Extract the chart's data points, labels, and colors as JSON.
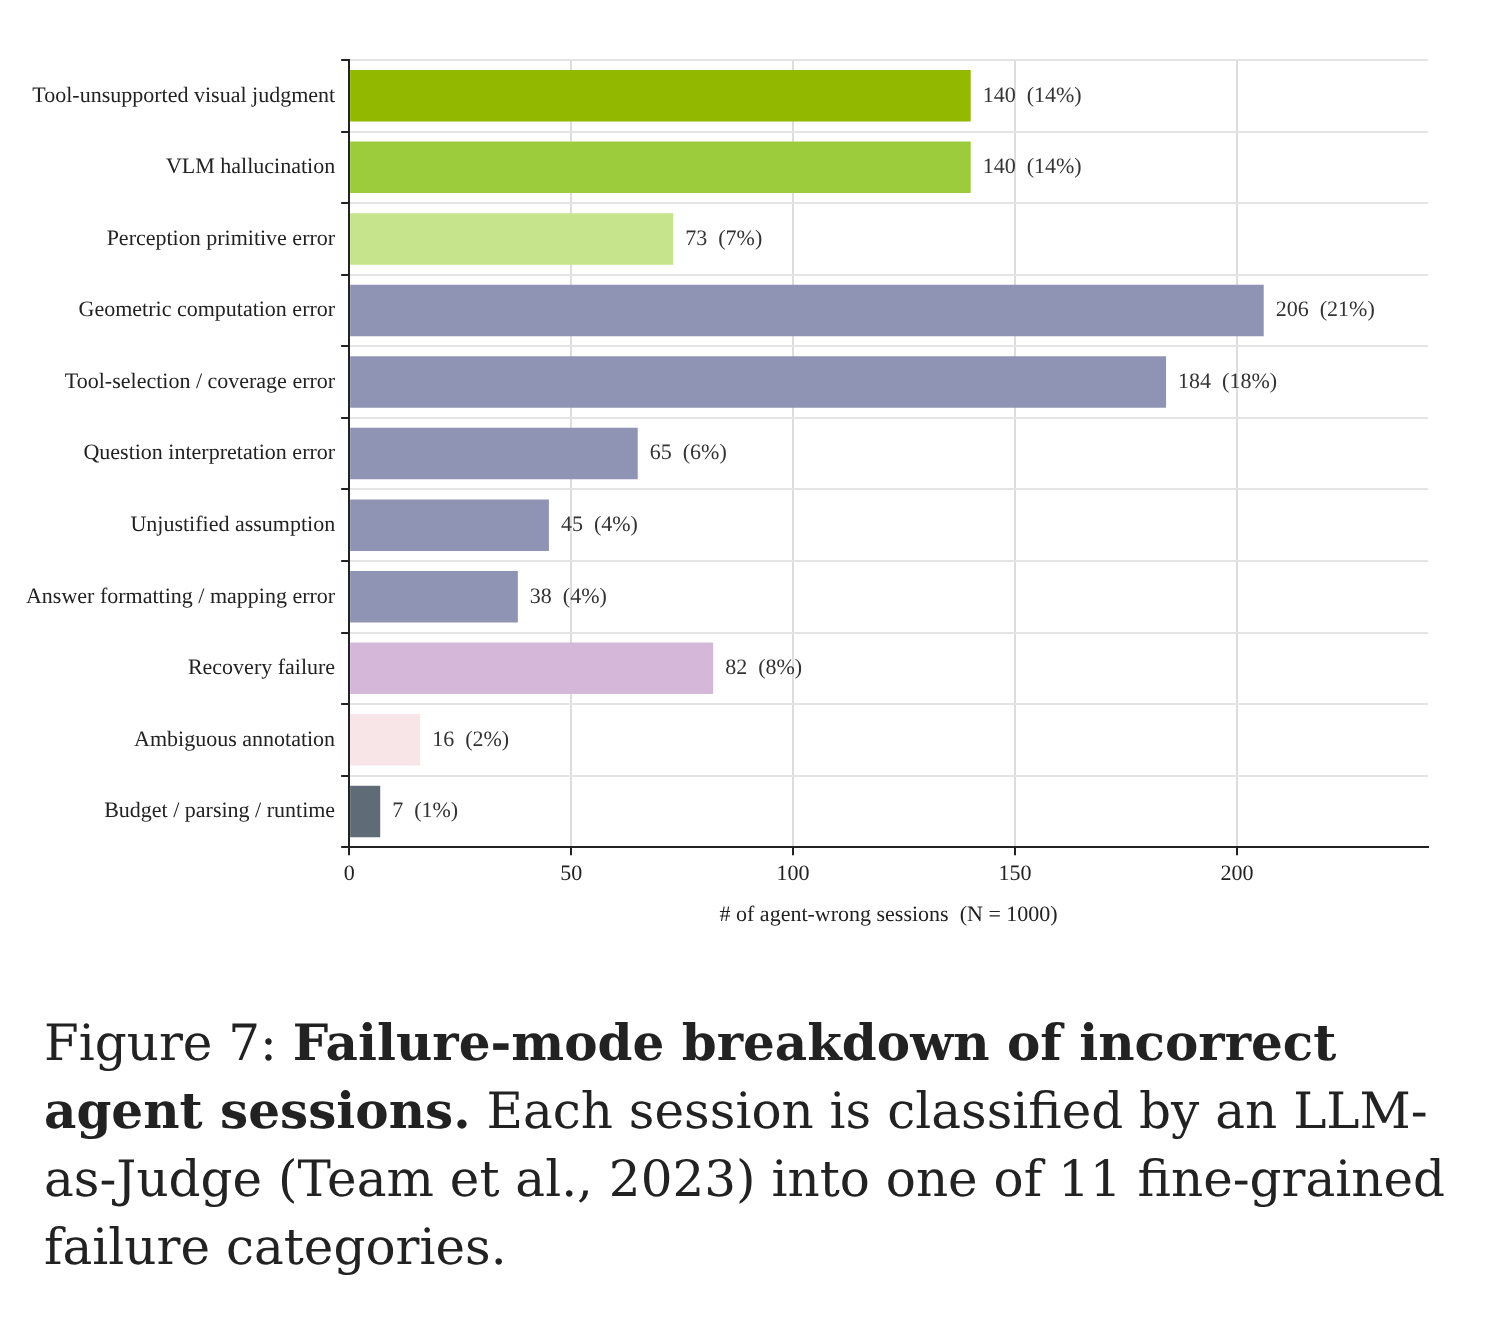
{
  "chart_data": {
    "type": "bar",
    "orientation": "horizontal",
    "title": "Failure-mode breakdown of incorrect agent sessions.",
    "categories": [
      "Tool-unsupported visual judgment",
      "VLM hallucination",
      "Perception primitive error",
      "Geometric computation error",
      "Tool-selection / coverage error",
      "Question interpretation error",
      "Unjustified assumption",
      "Answer formatting / mapping error",
      "Recovery failure",
      "Ambiguous annotation",
      "Budget / parsing / runtime"
    ],
    "values": [
      140,
      140,
      73,
      206,
      184,
      65,
      45,
      38,
      82,
      16,
      7
    ],
    "value_labels": [
      "140  (14%)",
      "140  (14%)",
      "73  (7%)",
      "206  (21%)",
      "184  (18%)",
      "65  (6%)",
      "45  (4%)",
      "38  (4%)",
      "82  (8%)",
      "16  (2%)",
      "7  (1%)"
    ],
    "colors": [
      "#93b800",
      "#9ccb3b",
      "#c6e48b",
      "#9094b4",
      "#9094b4",
      "#9094b4",
      "#9094b4",
      "#9094b4",
      "#d5b7da",
      "#f8e5e8",
      "#5f6b76"
    ],
    "xlabel": "# of agent-wrong sessions  (N = 1000)",
    "xlim": [
      0,
      243
    ],
    "xticks": [
      0,
      50,
      100,
      150,
      200
    ],
    "grid": true,
    "annotations": [
      "Figure 7:",
      "Each session is classified by an LLM-as-Judge (Team et al., 2023) into one of 11 fine-grained failure categories."
    ]
  }
}
